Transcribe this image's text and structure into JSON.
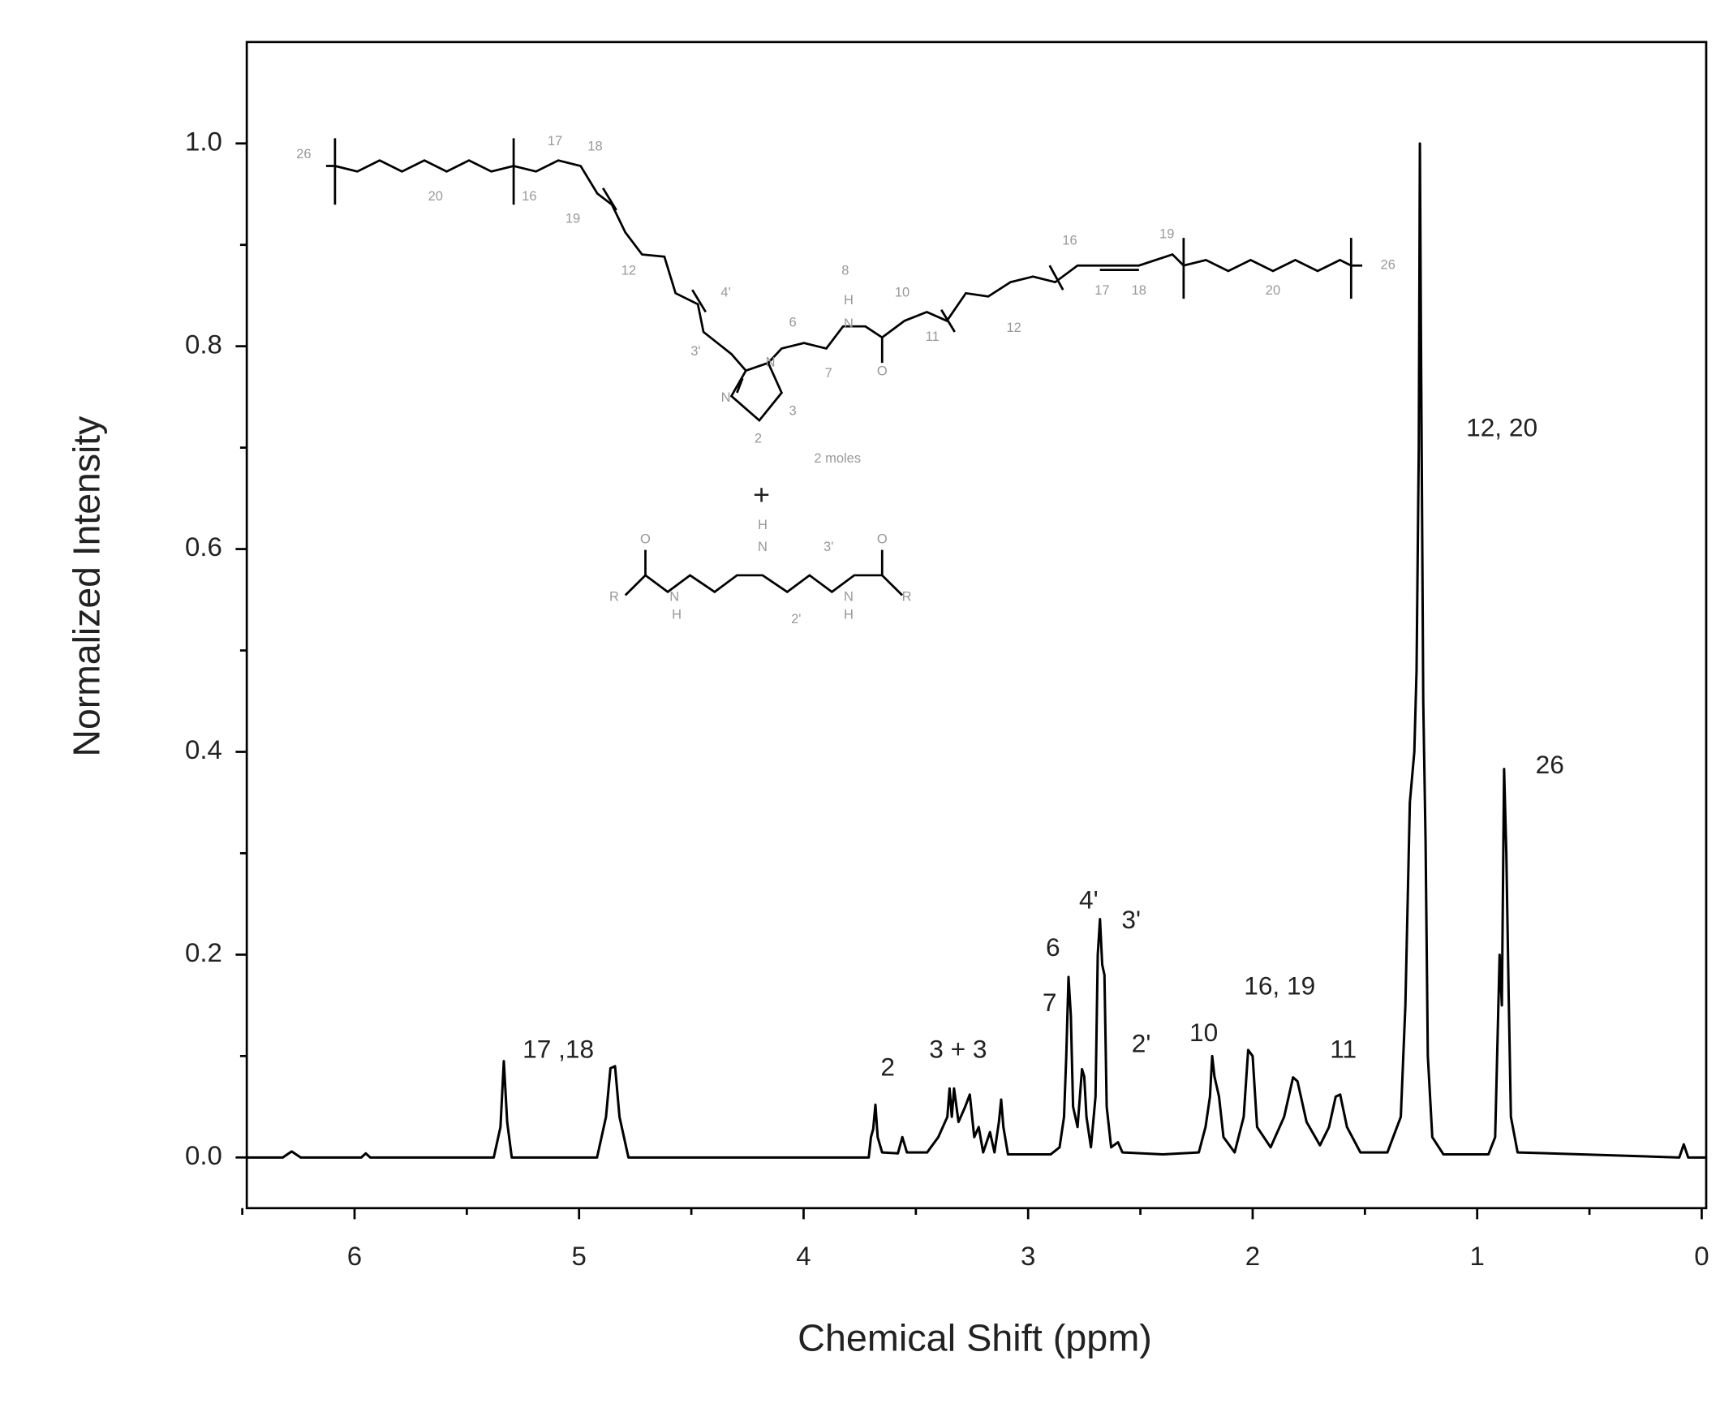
{
  "chart_data": {
    "type": "line",
    "title": null,
    "xlabel": "Chemical Shift (ppm)",
    "ylabel": "Normalized Intensity",
    "xlim": [
      6.48,
      -0.02
    ],
    "ylim": [
      -0.05,
      1.1
    ],
    "xticks": [
      6,
      5,
      4,
      3,
      2,
      1,
      0
    ],
    "xminorticks": [
      6.5,
      5.5,
      4.5,
      3.5,
      2.5,
      1.5,
      0.5
    ],
    "yticks": [
      {
        "value": 0,
        "label": "0.0"
      },
      0.2,
      0.4,
      0.6,
      0.8,
      {
        "value": 1,
        "label": "1.0"
      }
    ],
    "yminorticks": [
      0.1,
      0.3,
      0.5,
      0.7,
      0.9
    ],
    "color": "#000000",
    "x": [
      6.48,
      6.32,
      6.28,
      6.24,
      5.97,
      5.95,
      5.93,
      5.38,
      5.35,
      5.335,
      5.32,
      5.3,
      4.92,
      4.88,
      4.86,
      4.84,
      4.82,
      4.78,
      3.71,
      3.7,
      3.69,
      3.68,
      3.67,
      3.65,
      3.58,
      3.56,
      3.54,
      3.45,
      3.4,
      3.36,
      3.35,
      3.34,
      3.33,
      3.31,
      3.28,
      3.26,
      3.24,
      3.22,
      3.2,
      3.17,
      3.15,
      3.13,
      3.12,
      3.11,
      3.09,
      2.9,
      2.86,
      2.84,
      2.83,
      2.82,
      2.81,
      2.8,
      2.78,
      2.76,
      2.75,
      2.74,
      2.72,
      2.7,
      2.69,
      2.68,
      2.67,
      2.66,
      2.65,
      2.63,
      2.6,
      2.58,
      2.4,
      2.24,
      2.21,
      2.19,
      2.18,
      2.17,
      2.15,
      2.13,
      2.08,
      2.04,
      2.02,
      2.0,
      1.98,
      1.92,
      1.86,
      1.82,
      1.8,
      1.76,
      1.7,
      1.66,
      1.63,
      1.61,
      1.58,
      1.52,
      1.4,
      1.34,
      1.32,
      1.3,
      1.28,
      1.27,
      1.26,
      1.255,
      1.25,
      1.24,
      1.23,
      1.22,
      1.2,
      1.15,
      0.95,
      0.92,
      0.9,
      0.89,
      0.88,
      0.87,
      0.86,
      0.85,
      0.82,
      0.1,
      0.08,
      0.06,
      -0.02
    ],
    "values": [
      0,
      0,
      0.006,
      0,
      0,
      0.004,
      0,
      0,
      0.03,
      0.095,
      0.035,
      0,
      0,
      0.04,
      0.088,
      0.09,
      0.04,
      0,
      0,
      0.02,
      0.028,
      0.052,
      0.02,
      0.005,
      0.004,
      0.02,
      0.005,
      0.005,
      0.02,
      0.04,
      0.068,
      0.04,
      0.068,
      0.035,
      0.05,
      0.062,
      0.02,
      0.03,
      0.005,
      0.025,
      0.005,
      0.035,
      0.057,
      0.03,
      0.003,
      0.003,
      0.01,
      0.04,
      0.1,
      0.178,
      0.14,
      0.05,
      0.03,
      0.087,
      0.08,
      0.04,
      0.01,
      0.06,
      0.2,
      0.235,
      0.19,
      0.18,
      0.05,
      0.01,
      0.015,
      0.005,
      0.003,
      0.005,
      0.03,
      0.06,
      0.1,
      0.08,
      0.06,
      0.02,
      0.005,
      0.04,
      0.106,
      0.1,
      0.03,
      0.01,
      0.04,
      0.079,
      0.075,
      0.035,
      0.012,
      0.03,
      0.06,
      0.062,
      0.03,
      0.005,
      0.005,
      0.04,
      0.15,
      0.35,
      0.4,
      0.48,
      0.7,
      1.0,
      0.8,
      0.45,
      0.31,
      0.1,
      0.02,
      0.003,
      0.003,
      0.02,
      0.2,
      0.15,
      0.383,
      0.3,
      0.16,
      0.04,
      0.005,
      0,
      0.013,
      0,
      0
    ],
    "annotations": [
      "17 ,18",
      "2",
      "3 + 3",
      "6",
      "7",
      "4'",
      "3'",
      "2'",
      "10",
      "16, 19",
      "11",
      "12, 20",
      "26"
    ]
  },
  "structure_labels": [
    "26",
    "20",
    "16",
    "17",
    "18",
    "19",
    "12",
    "4'",
    "3'",
    "N",
    "N",
    "2",
    "3",
    "6",
    "7",
    "8",
    "H",
    "N",
    "10",
    "O",
    "11",
    "12",
    "16",
    "19",
    "17",
    "18",
    "20",
    "26",
    "2 moles",
    "+",
    "O",
    "R",
    "N",
    "H",
    "H",
    "N",
    "3'",
    "O",
    "2'",
    "N",
    "H",
    "R"
  ]
}
